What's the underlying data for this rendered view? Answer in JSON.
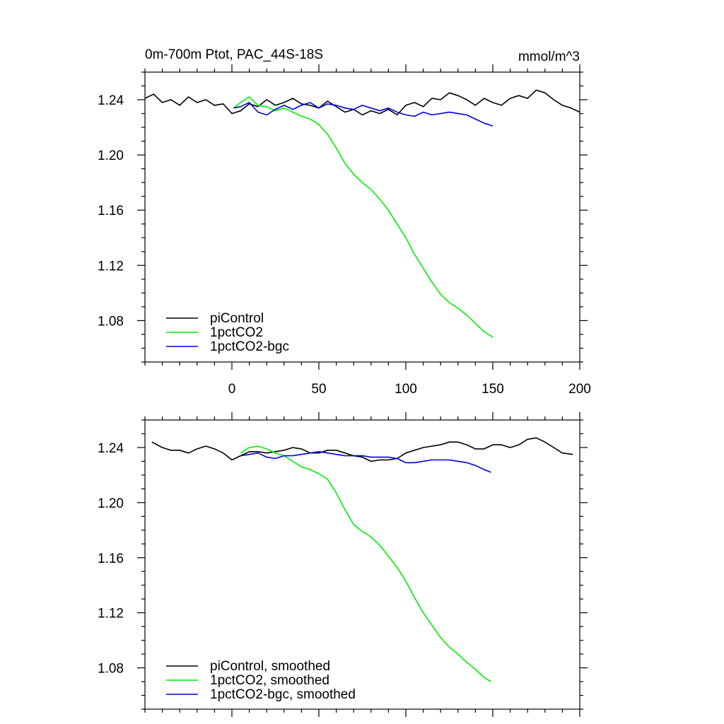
{
  "chart_data": [
    {
      "type": "line",
      "title": "0m-700m Ptot, PAC_44S-18S",
      "units": "mmol/m^3",
      "xlim": [
        -50,
        200
      ],
      "ylim": [
        1.05,
        1.26
      ],
      "x_ticks": [
        0,
        50,
        100,
        150,
        200
      ],
      "x_tick_labels": [
        "0",
        "50",
        "100",
        "150",
        "200"
      ],
      "y_ticks": [
        1.08,
        1.12,
        1.16,
        1.2,
        1.24
      ],
      "y_tick_labels": [
        "1.08",
        "1.12",
        "1.16",
        "1.20",
        "1.24"
      ],
      "legend_position": "bottom-left",
      "series": [
        {
          "name": "piControl",
          "color": "#000000",
          "x": [
            -50,
            -45,
            -40,
            -35,
            -30,
            -25,
            -20,
            -15,
            -10,
            -5,
            0,
            5,
            10,
            15,
            20,
            25,
            30,
            35,
            40,
            45,
            50,
            55,
            60,
            65,
            70,
            75,
            80,
            85,
            90,
            95,
            100,
            105,
            110,
            115,
            120,
            125,
            130,
            135,
            140,
            145,
            150,
            155,
            160,
            165,
            170,
            175,
            180,
            185,
            190,
            195,
            200
          ],
          "values": [
            1.241,
            1.244,
            1.238,
            1.24,
            1.236,
            1.242,
            1.238,
            1.24,
            1.236,
            1.237,
            1.23,
            1.232,
            1.237,
            1.235,
            1.24,
            1.236,
            1.238,
            1.241,
            1.237,
            1.236,
            1.234,
            1.239,
            1.235,
            1.231,
            1.233,
            1.229,
            1.232,
            1.23,
            1.233,
            1.229,
            1.236,
            1.238,
            1.235,
            1.241,
            1.24,
            1.245,
            1.243,
            1.24,
            1.236,
            1.241,
            1.238,
            1.236,
            1.241,
            1.243,
            1.241,
            1.247,
            1.245,
            1.24,
            1.236,
            1.234,
            1.231
          ]
        },
        {
          "name": "1pctCO2",
          "color": "#00ee00",
          "x": [
            1,
            5,
            10,
            15,
            20,
            25,
            30,
            35,
            40,
            45,
            50,
            55,
            60,
            65,
            70,
            75,
            80,
            85,
            90,
            95,
            100,
            105,
            110,
            115,
            120,
            125,
            130,
            135,
            140,
            145,
            150
          ],
          "values": [
            1.234,
            1.238,
            1.242,
            1.236,
            1.235,
            1.232,
            1.234,
            1.231,
            1.228,
            1.226,
            1.222,
            1.215,
            1.205,
            1.194,
            1.186,
            1.18,
            1.175,
            1.168,
            1.16,
            1.15,
            1.14,
            1.128,
            1.118,
            1.108,
            1.099,
            1.093,
            1.089,
            1.084,
            1.078,
            1.072,
            1.068
          ]
        },
        {
          "name": "1pctCO2-bgc",
          "color": "#0000dd",
          "x": [
            1,
            5,
            10,
            15,
            20,
            25,
            30,
            35,
            40,
            45,
            50,
            55,
            60,
            65,
            70,
            75,
            80,
            85,
            90,
            95,
            100,
            105,
            110,
            115,
            120,
            125,
            130,
            135,
            140,
            145,
            150
          ],
          "values": [
            1.234,
            1.235,
            1.238,
            1.231,
            1.229,
            1.233,
            1.236,
            1.233,
            1.236,
            1.238,
            1.234,
            1.237,
            1.236,
            1.234,
            1.233,
            1.236,
            1.234,
            1.232,
            1.234,
            1.231,
            1.229,
            1.228,
            1.231,
            1.229,
            1.23,
            1.231,
            1.23,
            1.229,
            1.226,
            1.223,
            1.221
          ]
        }
      ]
    },
    {
      "type": "line",
      "xlim": [
        -50,
        200
      ],
      "ylim": [
        1.05,
        1.26
      ],
      "x_ticks": [
        0,
        50,
        100,
        150,
        200
      ],
      "y_ticks": [
        1.08,
        1.12,
        1.16,
        1.2,
        1.24
      ],
      "y_tick_labels": [
        "1.08",
        "1.12",
        "1.16",
        "1.20",
        "1.24"
      ],
      "legend_position": "bottom-left",
      "series": [
        {
          "name": "piControl, smoothed",
          "color": "#000000",
          "x": [
            -46,
            -40,
            -35,
            -30,
            -25,
            -20,
            -15,
            -10,
            -5,
            0,
            5,
            10,
            15,
            20,
            25,
            30,
            35,
            40,
            45,
            50,
            55,
            60,
            65,
            70,
            75,
            80,
            85,
            90,
            95,
            100,
            105,
            110,
            115,
            120,
            125,
            130,
            135,
            140,
            145,
            150,
            155,
            160,
            165,
            170,
            175,
            180,
            185,
            190,
            196
          ],
          "values": [
            1.244,
            1.24,
            1.238,
            1.238,
            1.236,
            1.239,
            1.241,
            1.239,
            1.236,
            1.231,
            1.234,
            1.237,
            1.237,
            1.236,
            1.237,
            1.238,
            1.24,
            1.239,
            1.236,
            1.236,
            1.238,
            1.238,
            1.236,
            1.234,
            1.233,
            1.23,
            1.231,
            1.231,
            1.232,
            1.236,
            1.238,
            1.24,
            1.241,
            1.242,
            1.244,
            1.244,
            1.242,
            1.239,
            1.239,
            1.242,
            1.242,
            1.24,
            1.242,
            1.246,
            1.247,
            1.244,
            1.24,
            1.236,
            1.235
          ]
        },
        {
          "name": "1pctCO2, smoothed",
          "color": "#00ee00",
          "x": [
            5,
            10,
            15,
            20,
            25,
            30,
            35,
            40,
            45,
            50,
            55,
            60,
            65,
            70,
            75,
            80,
            85,
            90,
            95,
            100,
            105,
            110,
            115,
            120,
            125,
            130,
            135,
            140,
            145,
            149
          ],
          "values": [
            1.236,
            1.24,
            1.241,
            1.239,
            1.236,
            1.234,
            1.23,
            1.226,
            1.224,
            1.221,
            1.217,
            1.207,
            1.195,
            1.184,
            1.179,
            1.175,
            1.169,
            1.161,
            1.153,
            1.143,
            1.131,
            1.12,
            1.111,
            1.102,
            1.095,
            1.09,
            1.084,
            1.079,
            1.073,
            1.07
          ]
        },
        {
          "name": "1pctCO2-bgc, smoothed",
          "color": "#0000dd",
          "x": [
            5,
            10,
            15,
            20,
            25,
            30,
            35,
            40,
            45,
            50,
            55,
            60,
            65,
            70,
            75,
            80,
            85,
            90,
            95,
            100,
            105,
            110,
            115,
            120,
            125,
            130,
            135,
            140,
            145,
            149
          ],
          "values": [
            1.234,
            1.235,
            1.236,
            1.233,
            1.232,
            1.234,
            1.234,
            1.235,
            1.236,
            1.237,
            1.236,
            1.235,
            1.234,
            1.234,
            1.234,
            1.233,
            1.233,
            1.233,
            1.232,
            1.229,
            1.229,
            1.23,
            1.231,
            1.231,
            1.231,
            1.23,
            1.229,
            1.227,
            1.224,
            1.222
          ]
        }
      ]
    }
  ]
}
